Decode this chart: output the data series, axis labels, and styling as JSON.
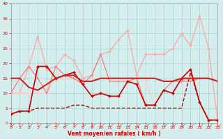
{
  "xlabel": "Vent moyen/en rafales ( km/h )",
  "xlim": [
    0,
    23
  ],
  "ylim": [
    0,
    40
  ],
  "yticks": [
    0,
    5,
    10,
    15,
    20,
    25,
    30,
    35,
    40
  ],
  "xticks": [
    0,
    1,
    2,
    3,
    4,
    5,
    6,
    7,
    8,
    9,
    10,
    11,
    12,
    13,
    14,
    15,
    16,
    17,
    18,
    19,
    20,
    21,
    22,
    23
  ],
  "bg_color": "#d4eeee",
  "grid_color": "#b0d4d4",
  "series": [
    {
      "x": [
        0,
        1,
        2,
        3,
        4,
        5,
        6,
        7,
        8,
        9,
        10,
        11,
        12,
        13,
        14,
        15,
        16,
        17,
        18,
        19,
        20,
        21,
        22,
        23
      ],
      "y": [
        3,
        4,
        4,
        19,
        19,
        15,
        16,
        17,
        13,
        9,
        10,
        9,
        9,
        14,
        13,
        6,
        6,
        11,
        10,
        15,
        18,
        7,
        1,
        1
      ],
      "color": "#cc0000",
      "lw": 1.2,
      "marker": "D",
      "ms": 2.0,
      "zorder": 5,
      "linestyle": "-"
    },
    {
      "x": [
        0,
        1,
        2,
        3,
        4,
        5,
        6,
        7,
        8,
        9,
        10,
        11,
        12,
        13,
        14,
        15,
        16,
        17,
        18,
        19,
        20,
        21,
        22,
        23
      ],
      "y": [
        10,
        10,
        19,
        29,
        18,
        19,
        23,
        21,
        15,
        16,
        23,
        24,
        28,
        31,
        16,
        23,
        23,
        23,
        25,
        30,
        26,
        36,
        25,
        1
      ],
      "color": "#ffaaaa",
      "lw": 1.0,
      "marker": "D",
      "ms": 2.0,
      "zorder": 3,
      "linestyle": "-"
    },
    {
      "x": [
        0,
        1,
        2,
        3,
        4,
        5,
        6,
        7,
        8,
        9,
        10,
        11,
        12,
        13,
        14,
        15,
        16,
        17,
        18,
        19,
        20,
        21,
        22,
        23
      ],
      "y": [
        15,
        15,
        12,
        11,
        13,
        15,
        16,
        16,
        14,
        14,
        15,
        15,
        15,
        15,
        15,
        15,
        15,
        14,
        14,
        15,
        15,
        15,
        15,
        14
      ],
      "color": "#cc2222",
      "lw": 1.5,
      "marker": null,
      "ms": 0,
      "zorder": 6,
      "linestyle": "-"
    },
    {
      "x": [
        0,
        1,
        2,
        3,
        4,
        5,
        6,
        7,
        8,
        9,
        10,
        11,
        12,
        13,
        14,
        15,
        16,
        17,
        18,
        19,
        20,
        21,
        22,
        23
      ],
      "y": [
        10,
        15,
        19,
        15,
        10,
        19,
        16,
        15,
        13,
        16,
        23,
        14,
        14,
        14,
        15,
        6,
        6,
        11,
        14,
        14,
        14,
        15,
        15,
        14
      ],
      "color": "#ff7777",
      "lw": 0.9,
      "marker": "+",
      "ms": 3.5,
      "zorder": 4,
      "linestyle": "-"
    },
    {
      "x": [
        0,
        1,
        2,
        3,
        4,
        5,
        6,
        7,
        8,
        9,
        10,
        11,
        12,
        13,
        14,
        15,
        16,
        17,
        18,
        19,
        20,
        21,
        22,
        23
      ],
      "y": [
        10,
        10,
        10,
        10,
        10,
        15,
        15,
        16,
        14,
        14,
        15,
        15,
        15,
        15,
        15,
        15,
        6,
        11,
        10,
        14,
        15,
        15,
        null,
        1
      ],
      "color": "#ffcccc",
      "lw": 0.9,
      "marker": "D",
      "ms": 1.8,
      "zorder": 3,
      "linestyle": "-"
    },
    {
      "x": [
        0,
        1,
        2,
        3,
        4,
        5,
        6,
        7,
        8,
        9,
        10,
        11,
        12,
        13,
        14,
        15,
        16,
        17,
        18,
        19,
        20,
        21,
        22,
        23
      ],
      "y": [
        3,
        4,
        4,
        5,
        5,
        5,
        5,
        6,
        6,
        5,
        5,
        5,
        5,
        5,
        5,
        5,
        5,
        5,
        5,
        5,
        17,
        7,
        1,
        1
      ],
      "color": "#cc0000",
      "lw": 1.0,
      "marker": null,
      "ms": 0,
      "zorder": 4,
      "linestyle": "--"
    }
  ],
  "arrow_color": "#dd4444"
}
